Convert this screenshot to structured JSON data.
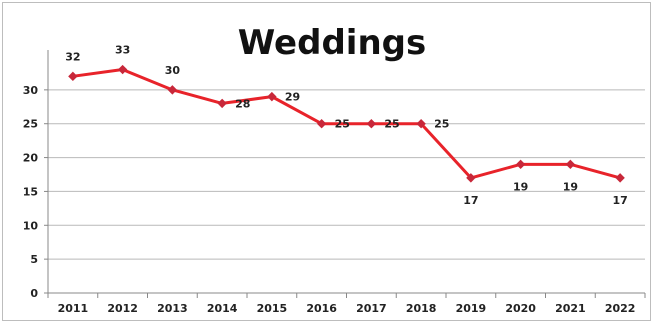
{
  "chart_data": {
    "type": "line",
    "title": "Weddings",
    "xlabel": "",
    "ylabel": "",
    "categories": [
      "2011",
      "2012",
      "2013",
      "2014",
      "2015",
      "2016",
      "2017",
      "2018",
      "2019",
      "2020",
      "2021",
      "2022"
    ],
    "series": [
      {
        "values": [
          32,
          33,
          30,
          28,
          29,
          25,
          25,
          25,
          17,
          19,
          19,
          17
        ],
        "color": "#e8232a"
      }
    ],
    "data_labels": [
      "32",
      "33",
      "30",
      "28",
      "29",
      "25",
      "25",
      "25",
      "17",
      "19",
      "19",
      "17"
    ],
    "ylim": [
      0,
      35
    ],
    "yticks": [
      0,
      5,
      10,
      15,
      20,
      25,
      30
    ],
    "grid": true,
    "legend": "none"
  }
}
